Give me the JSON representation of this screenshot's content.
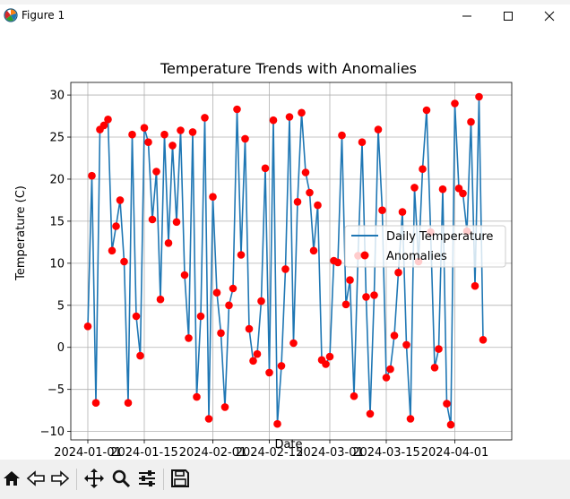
{
  "window": {
    "title": "Figure 1"
  },
  "chart_data": {
    "type": "line+scatter",
    "title": "Temperature Trends with Anomalies",
    "xlabel": "Date",
    "ylabel": "Temperature (C)",
    "x_start": "2024-01-01",
    "x_end": "2024-04-10",
    "xticks": [
      "2024-01-01",
      "2024-01-15",
      "2024-02-01",
      "2024-02-15",
      "2024-03-01",
      "2024-03-15",
      "2024-04-01"
    ],
    "yticks": [
      -10,
      -5,
      0,
      5,
      10,
      15,
      20,
      25,
      30
    ],
    "ylim": [
      -11,
      31.5
    ],
    "grid": true,
    "legend_position": "center-right",
    "series": [
      {
        "name": "Daily Temperature",
        "style": "line",
        "color": "#1f77b4"
      },
      {
        "name": "Anomalies",
        "style": "scatter",
        "color": "#ff0000"
      }
    ],
    "values": [
      2.5,
      20.4,
      -6.6,
      25.9,
      26.4,
      27.1,
      11.5,
      14.4,
      17.5,
      10.2,
      -6.6,
      25.3,
      3.7,
      -1.0,
      26.1,
      24.4,
      15.2,
      20.9,
      5.7,
      25.3,
      12.4,
      24.0,
      14.9,
      25.8,
      8.6,
      1.1,
      25.6,
      -5.9,
      3.7,
      27.3,
      -8.5,
      17.9,
      6.5,
      1.7,
      -7.1,
      5.0,
      7.0,
      28.3,
      11.0,
      24.8,
      2.2,
      -1.6,
      -0.8,
      5.5,
      21.3,
      -3.0,
      27.0,
      -9.1,
      -2.2,
      9.3,
      27.4,
      0.5,
      17.3,
      27.9,
      20.8,
      18.4,
      11.5,
      16.9,
      -1.5,
      -2.0,
      -1.1,
      10.3,
      10.1,
      25.2,
      5.1,
      8.0,
      -5.8,
      10.9,
      24.4,
      6.0,
      -7.9,
      6.2,
      25.9,
      16.3,
      -3.6,
      -2.6,
      1.4,
      8.9,
      16.1,
      0.3,
      -8.5,
      19.0,
      10.2,
      21.2,
      28.2,
      13.7,
      -2.4,
      -0.2,
      18.8,
      -6.7,
      -9.2,
      29.0,
      18.9,
      18.3,
      13.8,
      26.8,
      7.3,
      29.8,
      0.9
    ]
  },
  "toolbar": {
    "home": "home-icon",
    "back": "arrow-left-icon",
    "forward": "arrow-right-icon",
    "pan": "move-icon",
    "zoom": "zoom-icon",
    "configure": "sliders-icon",
    "save": "save-icon"
  }
}
